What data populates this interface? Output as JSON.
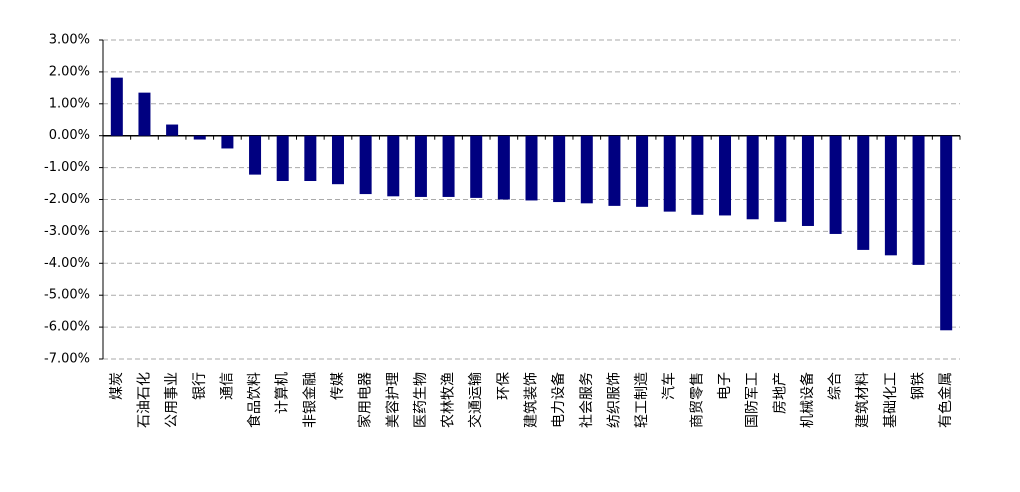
{
  "chart_data": {
    "type": "bar",
    "categories": [
      "煤炭",
      "石油石化",
      "公用事业",
      "银行",
      "通信",
      "食品饮料",
      "计算机",
      "非银金融",
      "传媒",
      "家用电器",
      "美容护理",
      "医药生物",
      "农林牧渔",
      "交通运输",
      "环保",
      "建筑装饰",
      "电力设备",
      "社会服务",
      "纺织服饰",
      "轻工制造",
      "汽车",
      "商贸零售",
      "电子",
      "国防军工",
      "房地产",
      "机械设备",
      "综合",
      "建筑材料",
      "基础化工",
      "钢铁",
      "有色金属"
    ],
    "values": [
      1.82,
      1.35,
      0.35,
      -0.12,
      -0.4,
      -1.22,
      -1.42,
      -1.42,
      -1.52,
      -1.83,
      -1.9,
      -1.92,
      -1.92,
      -1.95,
      -2.0,
      -2.03,
      -2.08,
      -2.12,
      -2.2,
      -2.23,
      -2.38,
      -2.48,
      -2.5,
      -2.62,
      -2.7,
      -2.83,
      -3.08,
      -3.58,
      -3.75,
      -4.05,
      -6.1
    ],
    "color": "#000080",
    "ylim": [
      -7,
      3
    ],
    "yticks": [
      {
        "value": 3,
        "label": "3.00%"
      },
      {
        "value": 2,
        "label": "2.00%"
      },
      {
        "value": 1,
        "label": "1.00%"
      },
      {
        "value": 0,
        "label": "0.00%"
      },
      {
        "value": -1,
        "label": "-1.00%"
      },
      {
        "value": -2,
        "label": "-2.00%"
      },
      {
        "value": -3,
        "label": "-3.00%"
      },
      {
        "value": -4,
        "label": "-4.00%"
      },
      {
        "value": -5,
        "label": "-5.00%"
      },
      {
        "value": -6,
        "label": "-6.00%"
      },
      {
        "value": -7,
        "label": "-7.00%"
      }
    ],
    "grid": true
  }
}
